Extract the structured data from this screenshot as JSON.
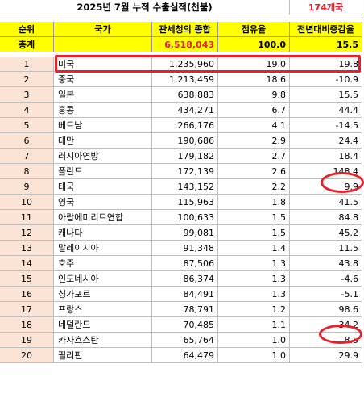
{
  "title": "2025년 7월 누적 수출실적(천불)",
  "country_count": "174개국",
  "headers": {
    "rank": "순위",
    "country": "국가",
    "value": "관세청의 종합",
    "share": "점유율",
    "change": "전년대비증감율"
  },
  "total": {
    "label": "총계",
    "value": "6,518,043",
    "share": "100.0",
    "change": "15.5"
  },
  "rows": [
    {
      "rank": "1",
      "country": "미국",
      "value": "1,235,960",
      "share": "19.0",
      "change": "19.8"
    },
    {
      "rank": "2",
      "country": "중국",
      "value": "1,213,459",
      "share": "18.6",
      "change": "-10.9"
    },
    {
      "rank": "3",
      "country": "일본",
      "value": "638,883",
      "share": "9.8",
      "change": "15.5"
    },
    {
      "rank": "4",
      "country": "홍콩",
      "value": "434,271",
      "share": "6.7",
      "change": "44.4"
    },
    {
      "rank": "5",
      "country": "베트남",
      "value": "266,176",
      "share": "4.1",
      "change": "-14.5"
    },
    {
      "rank": "6",
      "country": "대만",
      "value": "190,686",
      "share": "2.9",
      "change": "24.4"
    },
    {
      "rank": "7",
      "country": "러시아연방",
      "value": "179,182",
      "share": "2.7",
      "change": "18.4"
    },
    {
      "rank": "8",
      "country": "폴란드",
      "value": "172,139",
      "share": "2.6",
      "change": "148.4"
    },
    {
      "rank": "9",
      "country": "태국",
      "value": "143,152",
      "share": "2.2",
      "change": "9.9"
    },
    {
      "rank": "10",
      "country": "영국",
      "value": "115,963",
      "share": "1.8",
      "change": "41.5"
    },
    {
      "rank": "11",
      "country": "아랍에미리트연합",
      "value": "100,633",
      "share": "1.5",
      "change": "84.8"
    },
    {
      "rank": "12",
      "country": "캐나다",
      "value": "99,081",
      "share": "1.5",
      "change": "45.2"
    },
    {
      "rank": "13",
      "country": "말레이시아",
      "value": "91,348",
      "share": "1.4",
      "change": "11.5"
    },
    {
      "rank": "14",
      "country": "호주",
      "value": "87,506",
      "share": "1.3",
      "change": "43.8"
    },
    {
      "rank": "15",
      "country": "인도네시아",
      "value": "86,374",
      "share": "1.3",
      "change": "-4.6"
    },
    {
      "rank": "16",
      "country": "싱가포르",
      "value": "84,491",
      "share": "1.3",
      "change": "-5.1"
    },
    {
      "rank": "17",
      "country": "프랑스",
      "value": "78,791",
      "share": "1.2",
      "change": "98.6"
    },
    {
      "rank": "18",
      "country": "네덜란드",
      "value": "70,485",
      "share": "1.1",
      "change": "34.2"
    },
    {
      "rank": "19",
      "country": "카자흐스탄",
      "value": "65,764",
      "share": "1.0",
      "change": "8.5"
    },
    {
      "rank": "20",
      "country": "필리핀",
      "value": "64,479",
      "share": "1.0",
      "change": "29.9"
    }
  ],
  "annotations": {
    "color": "#e8202a",
    "highlighted_rows": [
      "1"
    ],
    "circled_cells": [
      "8",
      "17"
    ]
  }
}
